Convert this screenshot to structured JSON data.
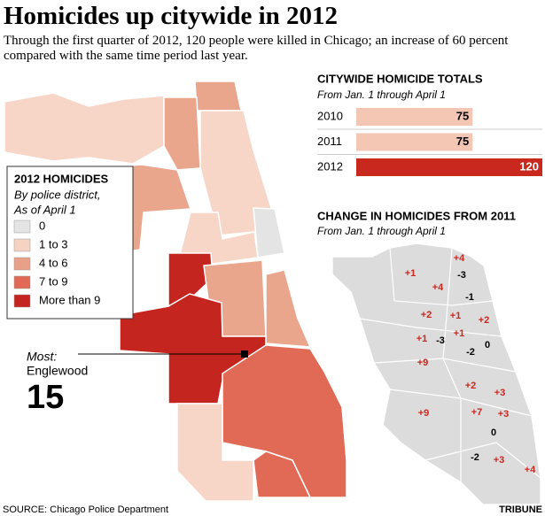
{
  "header": {
    "title": "Homicides up citywide in 2012",
    "subtitle": "Through the first quarter of 2012, 120 people were killed in Chicago; an increase of 60 percent compared with the same time period last year."
  },
  "chart_data": {
    "type": "bar",
    "title": "CITYWIDE HOMICIDE TOTALS",
    "subtitle": "From Jan. 1 through April 1",
    "categories": [
      "2010",
      "2011",
      "2012"
    ],
    "values": [
      75,
      75,
      120
    ],
    "colors": [
      "#f4c7b5",
      "#f4c7b5",
      "#c8281e"
    ]
  },
  "legend": {
    "title": "2012 HOMICIDES",
    "subtitle": "By police district,",
    "note": "As of April 1",
    "items": [
      {
        "label": "0",
        "color": "#e4e4e4"
      },
      {
        "label": "1 to 3",
        "color": "#f6d2c3"
      },
      {
        "label": "4 to 6",
        "color": "#e9a088"
      },
      {
        "label": "7 to 9",
        "color": "#e06a55"
      },
      {
        "label": "More than 9",
        "color": "#c4261f"
      }
    ]
  },
  "callout": {
    "label": "Most:",
    "place": "Englewood",
    "value": 15
  },
  "change_map": {
    "title": "CHANGE IN HOMICIDES FROM 2011",
    "subtitle": "From Jan. 1 through April 1",
    "labels": [
      "+4",
      "-3",
      "+1",
      "+4",
      "-1",
      "+2",
      "+1",
      "+2",
      "+1",
      "-3",
      "+1",
      "0",
      "-2",
      "+9",
      "+2",
      "+3",
      "+9",
      "+7",
      "+3",
      "0",
      "-2",
      "+3",
      "+4"
    ]
  },
  "source": "SOURCE: Chicago Police Department",
  "credit": "TRIBUNE"
}
